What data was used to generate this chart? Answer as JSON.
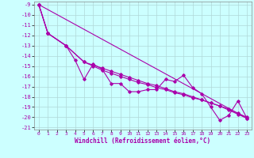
{
  "xlabel": "Windchill (Refroidissement éolien,°C)",
  "bg_color": "#ccffff",
  "grid_color": "#b0d8d8",
  "line_color": "#aa00aa",
  "xlim": [
    -0.5,
    23.5
  ],
  "ylim": [
    -21.2,
    -8.7
  ],
  "xticks": [
    0,
    1,
    2,
    3,
    4,
    5,
    6,
    7,
    8,
    9,
    10,
    11,
    12,
    13,
    14,
    15,
    16,
    17,
    18,
    19,
    20,
    21,
    22,
    23
  ],
  "yticks": [
    -9,
    -10,
    -11,
    -12,
    -13,
    -14,
    -15,
    -16,
    -17,
    -18,
    -19,
    -20,
    -21
  ],
  "line1_x": [
    0,
    1,
    3,
    4,
    5,
    6,
    7,
    8,
    9,
    10,
    11,
    12,
    13,
    14,
    15,
    16,
    17,
    18,
    19,
    20,
    21,
    22,
    23
  ],
  "line1_y": [
    -9.0,
    -11.8,
    -13.0,
    -14.4,
    -16.3,
    -14.8,
    -15.3,
    -16.7,
    -16.7,
    -17.5,
    -17.5,
    -17.3,
    -17.3,
    -16.3,
    -16.5,
    -15.9,
    -17.1,
    -17.7,
    -19.0,
    -20.3,
    -19.8,
    -18.4,
    -20.1
  ],
  "line2_x": [
    0,
    1,
    3,
    5,
    6,
    7,
    8,
    9,
    10,
    11,
    12,
    13,
    14,
    15,
    16,
    17,
    18,
    19,
    20,
    21,
    22,
    23
  ],
  "line2_y": [
    -9.0,
    -11.8,
    -13.0,
    -14.6,
    -15.0,
    -15.4,
    -15.7,
    -16.0,
    -16.3,
    -16.6,
    -16.8,
    -17.1,
    -17.3,
    -17.6,
    -17.8,
    -18.1,
    -18.3,
    -18.6,
    -18.9,
    -19.3,
    -19.7,
    -20.1
  ],
  "line3_x": [
    0,
    1,
    3,
    5,
    6,
    7,
    8,
    9,
    10,
    11,
    12,
    13,
    14,
    15,
    16,
    17,
    18,
    19,
    20,
    21,
    22,
    23
  ],
  "line3_y": [
    -9.0,
    -11.8,
    -13.0,
    -14.6,
    -14.9,
    -15.2,
    -15.5,
    -15.8,
    -16.1,
    -16.4,
    -16.7,
    -16.9,
    -17.2,
    -17.5,
    -17.7,
    -18.0,
    -18.3,
    -18.6,
    -18.9,
    -19.2,
    -19.6,
    -20.0
  ],
  "line4_x": [
    0,
    23
  ],
  "line4_y": [
    -9.0,
    -20.1
  ]
}
